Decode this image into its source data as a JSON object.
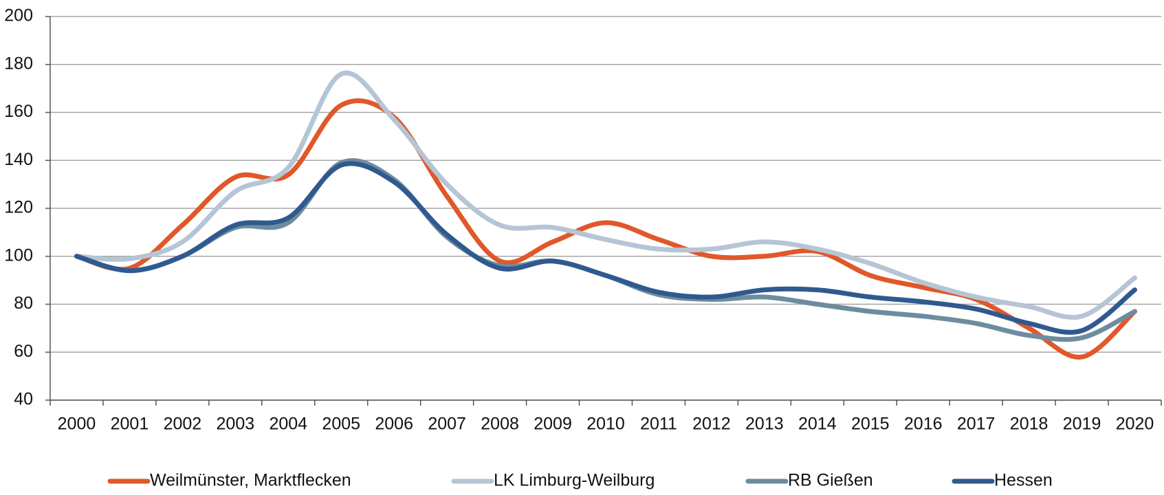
{
  "chart_data": {
    "type": "line",
    "categories": [
      "2000",
      "2001",
      "2002",
      "2003",
      "2004",
      "2005",
      "2006",
      "2007",
      "2008",
      "2009",
      "2010",
      "2011",
      "2012",
      "2013",
      "2014",
      "2015",
      "2016",
      "2017",
      "2018",
      "2019",
      "2020"
    ],
    "series": [
      {
        "name": "Weilmünster, Marktflecken",
        "color": "#e0582a",
        "values": [
          100,
          95,
          113,
          133,
          134,
          163,
          158,
          125,
          98,
          106,
          114,
          107,
          100,
          100,
          102,
          92,
          87,
          82,
          70,
          58,
          77
        ]
      },
      {
        "name": "LK Limburg-Weilburg",
        "color": "#b5c5d5",
        "values": [
          100,
          99,
          106,
          127,
          137,
          176,
          157,
          130,
          113,
          112,
          107,
          103,
          103,
          106,
          103,
          97,
          89,
          83,
          79,
          75,
          91
        ]
      },
      {
        "name": "RB Gießen",
        "color": "#6e8ca0",
        "values": [
          100,
          94,
          100,
          112,
          114,
          139,
          132,
          108,
          96,
          98,
          92,
          84,
          82,
          83,
          80,
          77,
          75,
          72,
          67,
          66,
          77
        ]
      },
      {
        "name": "Hessen",
        "color": "#2f5a8f",
        "values": [
          100,
          94,
          100,
          113,
          116,
          138,
          131,
          109,
          95,
          98,
          92,
          85,
          83,
          86,
          86,
          83,
          81,
          78,
          72,
          69,
          86
        ]
      }
    ],
    "ylim": [
      40,
      200
    ],
    "yticks": [
      40,
      60,
      80,
      100,
      120,
      140,
      160,
      180,
      200
    ],
    "grid": true,
    "legend": "bottom"
  }
}
